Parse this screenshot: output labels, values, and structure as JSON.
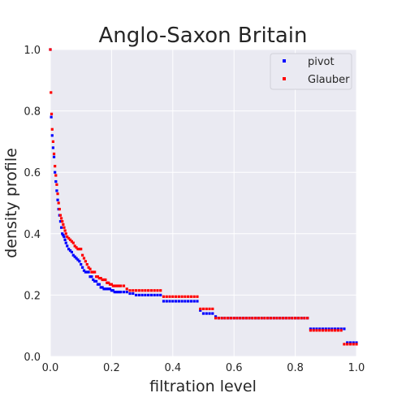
{
  "chart_data": {
    "type": "scatter",
    "title": "Anglo-Saxon Britain",
    "xlabel": "filtration level",
    "ylabel": "density profile",
    "xlim": [
      0,
      1
    ],
    "ylim": [
      0,
      1
    ],
    "xticks": [
      "0.0",
      "0.2",
      "0.4",
      "0.6",
      "0.8",
      "1.0"
    ],
    "yticks": [
      "0.0",
      "0.2",
      "0.4",
      "0.6",
      "0.8",
      "1.0"
    ],
    "grid": true,
    "legend_position": "top-right",
    "background": "#eaeaf2",
    "series": [
      {
        "name": "pivot",
        "color": "#0000ff",
        "x": [
          0.0,
          0.003,
          0.006,
          0.009,
          0.012,
          0.015,
          0.018,
          0.021,
          0.024,
          0.027,
          0.03,
          0.033,
          0.036,
          0.039,
          0.042,
          0.045,
          0.048,
          0.051,
          0.055,
          0.06,
          0.065,
          0.07,
          0.075,
          0.08,
          0.085,
          0.09,
          0.095,
          0.1,
          0.105,
          0.11,
          0.115,
          0.12,
          0.125,
          0.13,
          0.135,
          0.14,
          0.145,
          0.15,
          0.155,
          0.16,
          0.165,
          0.17,
          0.175,
          0.18,
          0.185,
          0.19,
          0.195,
          0.2,
          0.205,
          0.21,
          0.215,
          0.22,
          0.225,
          0.23,
          0.24,
          0.25,
          0.26,
          0.27,
          0.28,
          0.29,
          0.3,
          0.31,
          0.32,
          0.33,
          0.34,
          0.35,
          0.36,
          0.37,
          0.38,
          0.39,
          0.4,
          0.41,
          0.42,
          0.43,
          0.44,
          0.45,
          0.46,
          0.47,
          0.48,
          0.49,
          0.5,
          0.51,
          0.52,
          0.53,
          0.54,
          0.55,
          0.56,
          0.57,
          0.58,
          0.59,
          0.6,
          0.61,
          0.62,
          0.63,
          0.64,
          0.65,
          0.66,
          0.67,
          0.68,
          0.69,
          0.7,
          0.71,
          0.72,
          0.73,
          0.74,
          0.75,
          0.76,
          0.77,
          0.78,
          0.79,
          0.8,
          0.81,
          0.82,
          0.83,
          0.84,
          0.85,
          0.86,
          0.87,
          0.88,
          0.89,
          0.9,
          0.91,
          0.92,
          0.93,
          0.94,
          0.95,
          0.96,
          0.97,
          0.98,
          0.99,
          1.0
        ],
        "y": [
          1.0,
          0.78,
          0.72,
          0.68,
          0.65,
          0.6,
          0.57,
          0.54,
          0.51,
          0.48,
          0.46,
          0.44,
          0.42,
          0.4,
          0.395,
          0.39,
          0.38,
          0.37,
          0.36,
          0.35,
          0.345,
          0.34,
          0.33,
          0.325,
          0.32,
          0.315,
          0.31,
          0.3,
          0.29,
          0.28,
          0.275,
          0.275,
          0.275,
          0.26,
          0.26,
          0.25,
          0.245,
          0.245,
          0.235,
          0.235,
          0.225,
          0.225,
          0.22,
          0.22,
          0.22,
          0.22,
          0.22,
          0.215,
          0.215,
          0.21,
          0.21,
          0.21,
          0.21,
          0.21,
          0.21,
          0.21,
          0.205,
          0.205,
          0.2,
          0.2,
          0.2,
          0.2,
          0.2,
          0.2,
          0.2,
          0.2,
          0.2,
          0.18,
          0.18,
          0.18,
          0.18,
          0.18,
          0.18,
          0.18,
          0.18,
          0.18,
          0.18,
          0.18,
          0.18,
          0.15,
          0.14,
          0.14,
          0.14,
          0.14,
          0.13,
          0.125,
          0.125,
          0.125,
          0.125,
          0.125,
          0.125,
          0.125,
          0.125,
          0.125,
          0.125,
          0.125,
          0.125,
          0.125,
          0.125,
          0.125,
          0.125,
          0.125,
          0.125,
          0.125,
          0.125,
          0.125,
          0.125,
          0.125,
          0.125,
          0.125,
          0.125,
          0.125,
          0.125,
          0.125,
          0.125,
          0.09,
          0.09,
          0.09,
          0.09,
          0.09,
          0.09,
          0.09,
          0.09,
          0.09,
          0.09,
          0.09,
          0.09,
          0.045,
          0.045,
          0.045,
          0.045
        ]
      },
      {
        "name": "Glauber",
        "color": "#ff0000",
        "x": [
          0.0,
          0.002,
          0.004,
          0.006,
          0.009,
          0.012,
          0.015,
          0.018,
          0.021,
          0.024,
          0.027,
          0.03,
          0.033,
          0.036,
          0.039,
          0.042,
          0.045,
          0.048,
          0.051,
          0.055,
          0.06,
          0.065,
          0.07,
          0.075,
          0.08,
          0.085,
          0.09,
          0.095,
          0.1,
          0.105,
          0.11,
          0.115,
          0.12,
          0.125,
          0.13,
          0.135,
          0.14,
          0.145,
          0.15,
          0.155,
          0.16,
          0.165,
          0.17,
          0.175,
          0.18,
          0.185,
          0.19,
          0.195,
          0.2,
          0.205,
          0.21,
          0.215,
          0.22,
          0.225,
          0.23,
          0.24,
          0.25,
          0.26,
          0.27,
          0.28,
          0.29,
          0.3,
          0.31,
          0.32,
          0.33,
          0.34,
          0.35,
          0.36,
          0.37,
          0.38,
          0.39,
          0.4,
          0.41,
          0.42,
          0.43,
          0.44,
          0.45,
          0.46,
          0.47,
          0.48,
          0.49,
          0.5,
          0.51,
          0.52,
          0.53,
          0.54,
          0.55,
          0.56,
          0.57,
          0.58,
          0.59,
          0.6,
          0.61,
          0.62,
          0.63,
          0.64,
          0.65,
          0.66,
          0.67,
          0.68,
          0.69,
          0.7,
          0.71,
          0.72,
          0.73,
          0.74,
          0.75,
          0.76,
          0.77,
          0.78,
          0.79,
          0.8,
          0.81,
          0.82,
          0.83,
          0.84,
          0.85,
          0.86,
          0.87,
          0.88,
          0.89,
          0.9,
          0.91,
          0.92,
          0.93,
          0.94,
          0.95,
          0.96,
          0.97,
          0.98,
          0.99,
          1.0
        ],
        "y": [
          1.0,
          0.86,
          0.79,
          0.74,
          0.7,
          0.66,
          0.62,
          0.59,
          0.56,
          0.53,
          0.5,
          0.48,
          0.46,
          0.45,
          0.44,
          0.43,
          0.42,
          0.41,
          0.4,
          0.39,
          0.385,
          0.38,
          0.375,
          0.37,
          0.36,
          0.355,
          0.35,
          0.35,
          0.35,
          0.33,
          0.32,
          0.31,
          0.3,
          0.29,
          0.285,
          0.275,
          0.275,
          0.275,
          0.26,
          0.26,
          0.255,
          0.255,
          0.25,
          0.25,
          0.25,
          0.24,
          0.24,
          0.235,
          0.235,
          0.23,
          0.23,
          0.23,
          0.23,
          0.23,
          0.23,
          0.23,
          0.22,
          0.215,
          0.215,
          0.215,
          0.215,
          0.215,
          0.215,
          0.215,
          0.215,
          0.215,
          0.215,
          0.215,
          0.195,
          0.195,
          0.195,
          0.195,
          0.195,
          0.195,
          0.195,
          0.195,
          0.195,
          0.195,
          0.195,
          0.195,
          0.155,
          0.155,
          0.155,
          0.155,
          0.155,
          0.125,
          0.125,
          0.125,
          0.125,
          0.125,
          0.125,
          0.125,
          0.125,
          0.125,
          0.125,
          0.125,
          0.125,
          0.125,
          0.125,
          0.125,
          0.125,
          0.125,
          0.125,
          0.125,
          0.125,
          0.125,
          0.125,
          0.125,
          0.125,
          0.125,
          0.125,
          0.125,
          0.125,
          0.125,
          0.125,
          0.125,
          0.085,
          0.085,
          0.085,
          0.085,
          0.085,
          0.085,
          0.085,
          0.085,
          0.085,
          0.085,
          0.085,
          0.04,
          0.04,
          0.04,
          0.04,
          0.04
        ]
      }
    ]
  }
}
